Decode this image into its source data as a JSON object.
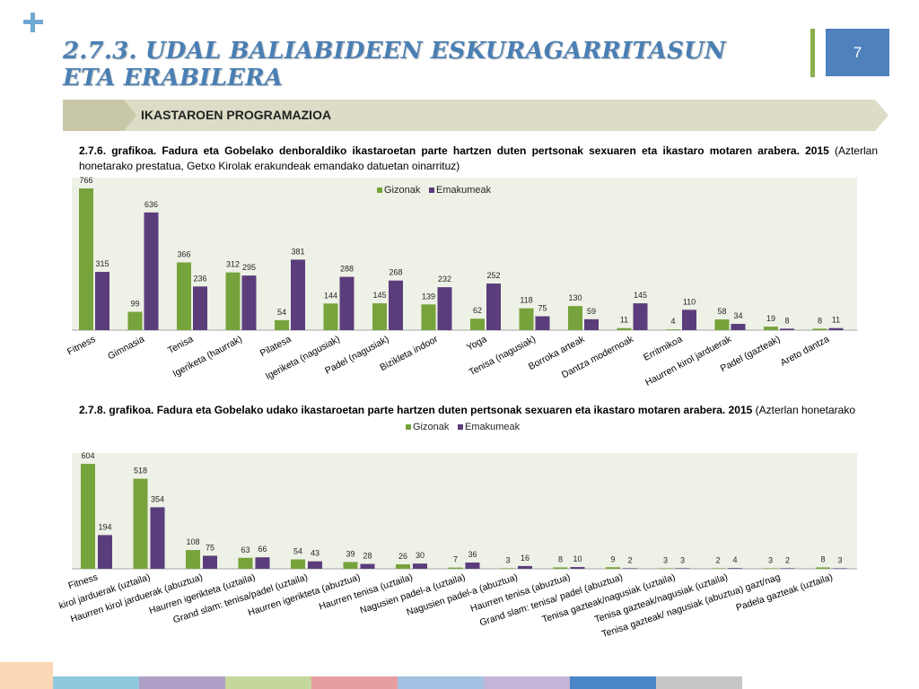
{
  "header": {
    "title": "2.7.3. UDAL BALIABIDEEN ESKURAGARRITASUN ETA ERABILERA",
    "page_number": "7",
    "section": "IKASTAROEN PROGRAMAZIOA"
  },
  "captions": {
    "chart1_bold": "2.7.6. grafikoa. Fadura eta Gobelako denboraldiko ikastaroetan parte hartzen duten pertsonak sexuaren eta ikastaro motaren arabera. 2015",
    "chart1_rest": " (Azterlan honetarako prestatua, Getxo Kirolak erakundeak emandako datuetan oinarrituz)",
    "chart2_bold": "2.7.8. grafikoa. Fadura eta Gobelako udako ikastaroetan parte hartzen duten pertsonak sexuaren eta ikastaro motaren arabera. 2015",
    "chart2_rest": " (Azterlan honetarako"
  },
  "colors": {
    "gizonak": "#77a33c",
    "emakumeak": "#5b3d7c",
    "plot_bg": "#eef1e6",
    "banner": "#dcdcc7",
    "banner_dark": "#c8c8a8"
  },
  "chart_data": [
    {
      "type": "bar",
      "categories": [
        "Fitness",
        "Gimnasia",
        "Tenisa",
        "Igeriketa (haurrak)",
        "Pilatesa",
        "Igeriketa (nagusiak)",
        "Padel (nagusiak)",
        "Bizikleta indoor",
        "Yoga",
        "Tenisa (nagusiak)",
        "Borroka arteak",
        "Dantza modernoak",
        "Erritmikoa",
        "Haurren kirol jarduerak",
        "Padel (gazteak)",
        "Areto dantza"
      ],
      "series": [
        {
          "name": "Gizonak",
          "values": [
            766,
            99,
            366,
            312,
            54,
            144,
            145,
            139,
            62,
            118,
            130,
            11,
            4,
            58,
            19,
            8
          ]
        },
        {
          "name": "Emakumeak",
          "values": [
            315,
            636,
            236,
            295,
            381,
            288,
            268,
            232,
            252,
            75,
            59,
            145,
            110,
            34,
            8,
            11
          ]
        }
      ],
      "ylim": [
        0,
        766
      ],
      "legend": "top-center"
    },
    {
      "type": "bar",
      "categories": [
        "Fitness",
        "Haurren kirol jarduerak (uztaila)",
        "Haurren kirol jarduerak (abuztua)",
        "Haurren igerikteta (uztaila)",
        "Grand slam: tenisa/padel (uztaila)",
        "Haurren igerikteta (abuztua)",
        "Haurren tenisa (uztaila)",
        "Nagusien padel-a (uztaila)",
        "Nagusien padel-a (abuztua)",
        "Haurren tenisa (abuztua)",
        "Grand slam: tenisa/ padel (abuztua)",
        "Tenisa gazteak/nagusiak (uztaila)",
        "Tenisa gazteak/nagusiak (uztaila)",
        "Tenisa gazteak/ nagusiak (abuztua) gazt/nag",
        "Padela gazteak (uztaila)"
      ],
      "tick_labels": [
        "Fitness",
        "kirol jarduerak (uztaila)",
        "Haurren kirol jarduerak (abuztua)",
        "Haurren igerikteta (uztaila)",
        "Grand slam: tenisa/padel (uztaila)",
        "Haurren igerikteta (abuztua)",
        "Haurren tenisa (uztaila)",
        "Nagusien padel-a (uztaila)",
        "Nagusien padel-a (abuztua)",
        "Haurren tenisa (abuztua)",
        "Grand slam: tenisa/ padel (abuztua)",
        "Tenisa gazteak/nagusiak (uztaila)",
        "Tenisa gazteak/nagusiak (uztaila)",
        "Tenisa gazteak/ nagusiak (abuztua) gazt/nag",
        "Padela gazteak (uztaila)"
      ],
      "series": [
        {
          "name": "Gizonak",
          "values": [
            604,
            518,
            108,
            63,
            54,
            39,
            26,
            7,
            3,
            8,
            9,
            3,
            2,
            3,
            8
          ]
        },
        {
          "name": "Emakumeak",
          "values": [
            194,
            354,
            75,
            66,
            43,
            28,
            30,
            36,
            16,
            10,
            2,
            3,
            4,
            2,
            3
          ]
        }
      ],
      "ylim": [
        0,
        604
      ],
      "legend": "top-center"
    }
  ],
  "footer_colors": [
    "#8fc9e0",
    "#b0a0c8",
    "#c5d79c",
    "#e79e9e",
    "#a3c1e3",
    "#c3b5d7",
    "#4a86c8",
    "#c6c6c6"
  ]
}
